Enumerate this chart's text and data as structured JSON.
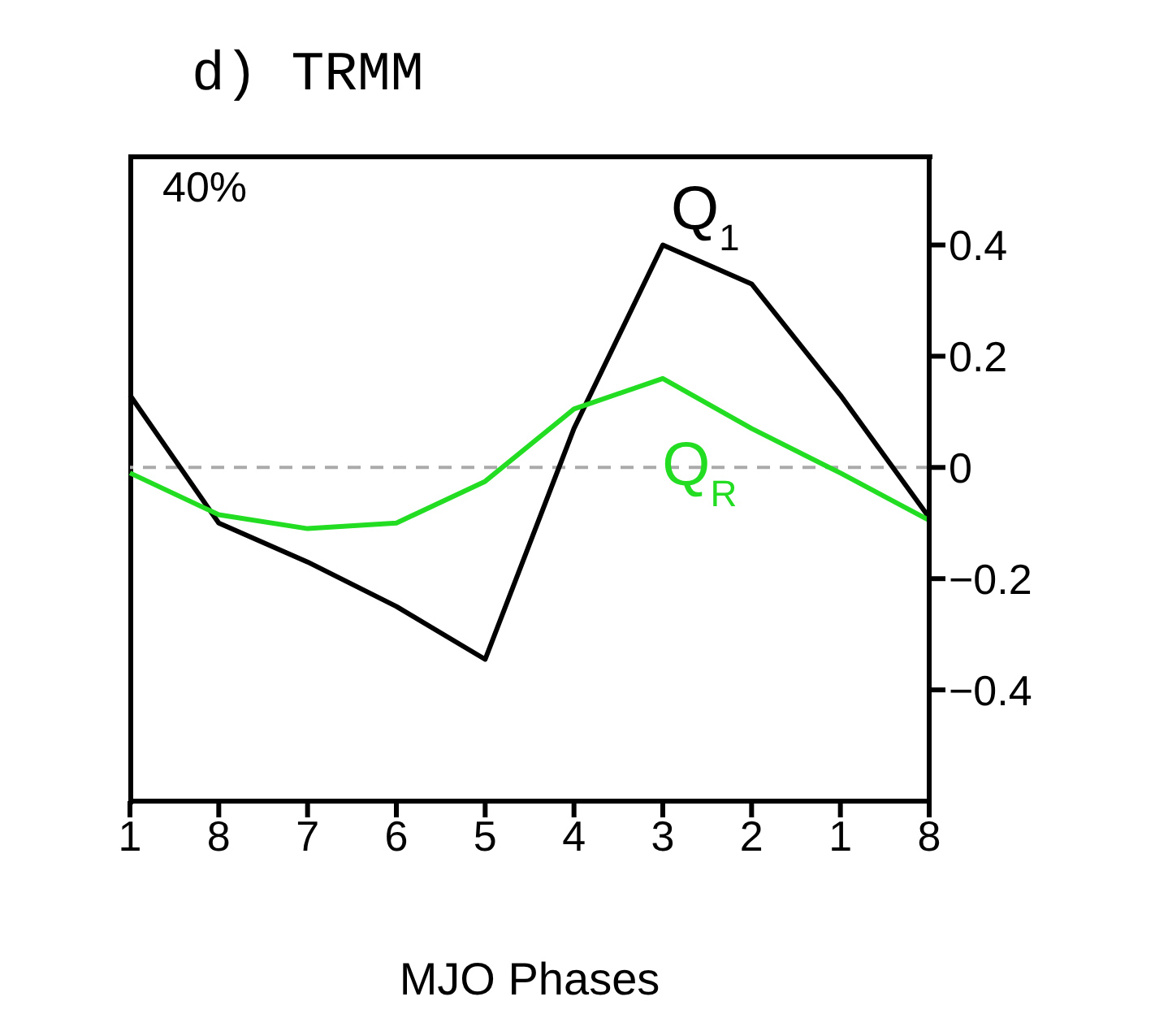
{
  "chart_data": {
    "type": "line",
    "title": "d) TRMM",
    "xlabel": "MJO Phases",
    "categories": [
      "1",
      "8",
      "7",
      "6",
      "5",
      "4",
      "3",
      "2",
      "1",
      "8"
    ],
    "series": [
      {
        "name": "Q$_{1}$",
        "color": "#000000",
        "values": [
          0.13,
          -0.1,
          -0.17,
          -0.25,
          -0.345,
          0.07,
          0.4,
          0.33,
          0.13,
          -0.09
        ]
      },
      {
        "name": "Q$_{R}$",
        "color": "#22dd22",
        "values": [
          -0.01,
          -0.085,
          -0.11,
          -0.1,
          -0.025,
          0.105,
          0.16,
          0.07,
          -0.01,
          -0.095
        ]
      }
    ],
    "ylim": [
      -0.6,
      0.56
    ],
    "yticks": [
      {
        "value": -0.4,
        "label": "−0.4"
      },
      {
        "value": -0.2,
        "label": "−0.2"
      },
      0,
      0.2,
      0.4
    ],
    "ref_lines": [
      {
        "axis": "y",
        "value": 0,
        "color": "#aaaaaa",
        "line_style": "dashed"
      }
    ],
    "annotations": [
      "40%"
    ],
    "grid": false,
    "marker": "none",
    "line_style": "solid"
  }
}
